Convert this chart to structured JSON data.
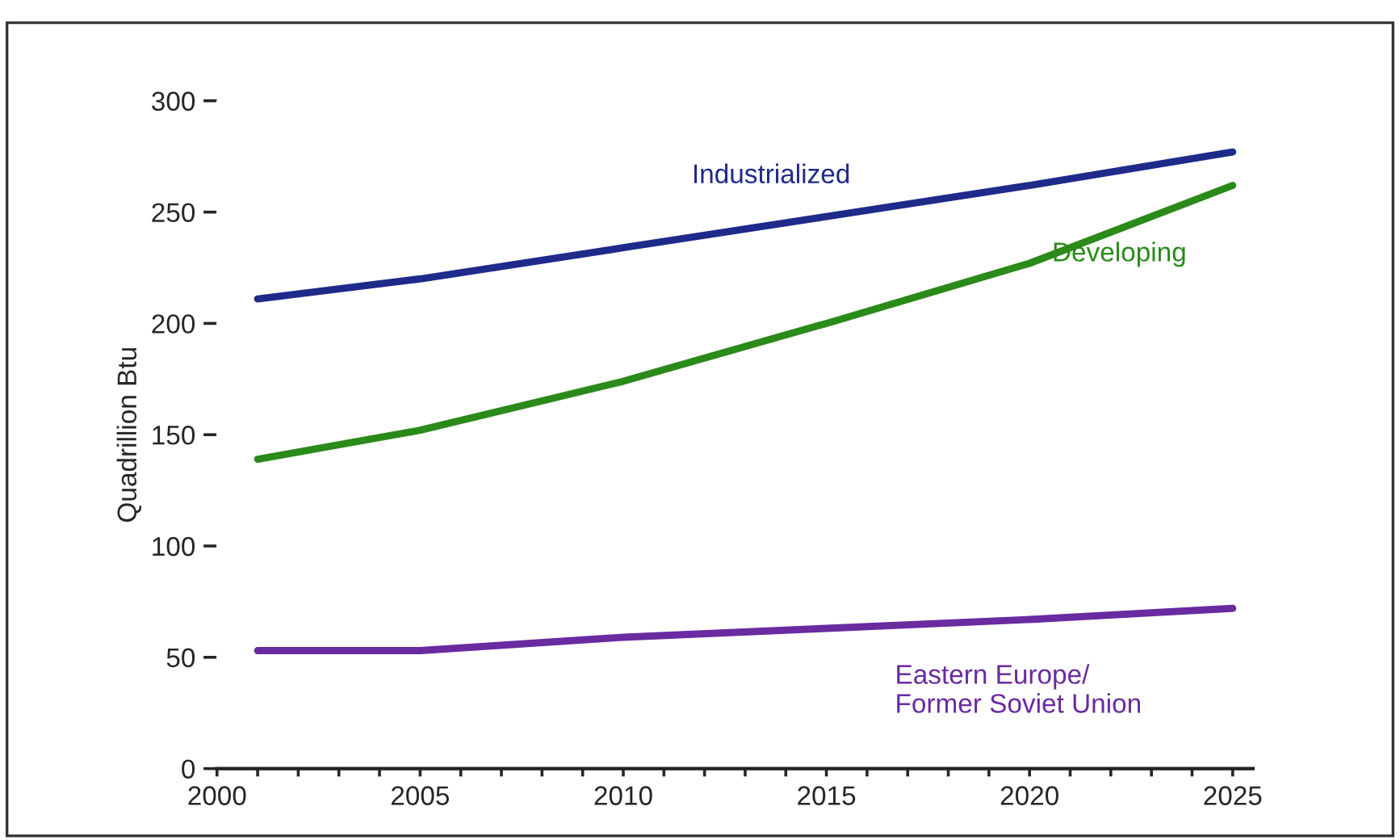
{
  "chart_data": {
    "type": "line",
    "ylabel": "Quadrillion Btu",
    "x": [
      2001,
      2005,
      2010,
      2015,
      2020,
      2025
    ],
    "series": [
      {
        "name": "Industrialized",
        "color": "#1f2a8a",
        "values": [
          211,
          220,
          234,
          248,
          262,
          277
        ]
      },
      {
        "name": "Developing",
        "color": "#2a8a1a",
        "values": [
          139,
          152,
          174,
          200,
          227,
          262
        ]
      },
      {
        "name": "Eastern Europe/\nFormer Soviet Union",
        "color": "#6a2aa0",
        "values": [
          53,
          53,
          59,
          63,
          67,
          72
        ]
      }
    ],
    "xlim": [
      2000,
      2025.5
    ],
    "ylim": [
      0,
      300
    ],
    "xticks": [
      2000,
      {
        "value": 2001,
        "label": null
      },
      {
        "value": 2002,
        "label": null
      },
      {
        "value": 2003,
        "label": null
      },
      {
        "value": 2004,
        "label": null
      },
      2005,
      {
        "value": 2006,
        "label": null
      },
      {
        "value": 2007,
        "label": null
      },
      {
        "value": 2008,
        "label": null
      },
      {
        "value": 2009,
        "label": null
      },
      2010,
      {
        "value": 2011,
        "label": null
      },
      {
        "value": 2012,
        "label": null
      },
      {
        "value": 2013,
        "label": null
      },
      {
        "value": 2014,
        "label": null
      },
      2015,
      {
        "value": 2016,
        "label": null
      },
      {
        "value": 2017,
        "label": null
      },
      {
        "value": 2018,
        "label": null
      },
      {
        "value": 2019,
        "label": null
      },
      2020,
      {
        "value": 2021,
        "label": null
      },
      {
        "value": 2022,
        "label": null
      },
      {
        "value": 2023,
        "label": null
      },
      {
        "value": 2024,
        "label": null
      },
      2025
    ],
    "yticks": [
      0,
      50,
      100,
      150,
      200,
      250,
      300
    ],
    "grid": false,
    "legend": false,
    "marker": "none",
    "line_style": "solid"
  }
}
